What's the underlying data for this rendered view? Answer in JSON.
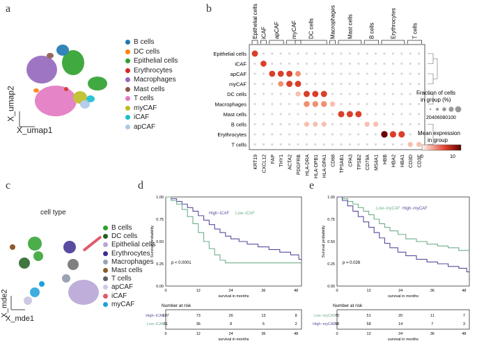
{
  "panels": {
    "a": "a",
    "b": "b",
    "c": "c",
    "d": "d",
    "e": "e"
  },
  "panel_a": {
    "xlabel": "X_umap1",
    "ylabel": "X_umap2",
    "legend": [
      {
        "label": "B cells",
        "color": "#1f77b4"
      },
      {
        "label": "DC cells",
        "color": "#ff7f0e"
      },
      {
        "label": "Epithelial cells",
        "color": "#2ca02c"
      },
      {
        "label": "Erythrocytes",
        "color": "#d62728"
      },
      {
        "label": "Macrophages",
        "color": "#9467bd"
      },
      {
        "label": "Mast cells",
        "color": "#8c564b"
      },
      {
        "label": "T cells",
        "color": "#e377c2"
      },
      {
        "label": "myCAF",
        "color": "#bcbd22"
      },
      {
        "label": "iCAF",
        "color": "#17becf"
      },
      {
        "label": "apCAF",
        "color": "#aec7e8"
      }
    ]
  },
  "panel_b": {
    "groups": [
      "Epithelial cells",
      "iCAF",
      "apCAF",
      "myCAF",
      "DC cells",
      "Macrophages",
      "Mast cells",
      "B cells",
      "Erythrocytes",
      "T cells"
    ],
    "genes": [
      "KRT19",
      "CXCL12",
      "FAP",
      "THY1",
      "ACTA2",
      "PDGFRB",
      "HLA-DRA",
      "HLA-DPB1",
      "HLA-DPA1",
      "CD68",
      "TPSAB1",
      "CPA3",
      "TPSB2",
      "CD79A",
      "MS4A1",
      "HBB",
      "HBA2",
      "HBA1",
      "CD3D",
      "CD3E"
    ],
    "gene_groups": [
      {
        "label": "Epithelial cells"
      },
      {
        "label": "iCAF"
      },
      {
        "label": "apCAF"
      },
      {
        "label": "myCAF"
      },
      {
        "label": "DC cells"
      },
      {
        "label": "Macrophages"
      },
      {
        "label": "Mast cells"
      },
      {
        "label": "B cells"
      },
      {
        "label": "Erythrocytes"
      },
      {
        "label": "T cells"
      }
    ],
    "size_legend_title_1": "Fraction of cells",
    "size_legend_title_2": "in group (%)",
    "size_ticks": "20406080100",
    "color_legend_title_1": "Mean expression",
    "color_legend_title_2": "in group",
    "color_ticks": [
      "0",
      "10"
    ]
  },
  "panel_c": {
    "title": "cell type",
    "xlabel": "X_mde1",
    "ylabel": "X_mde2",
    "legend": [
      {
        "label": "B cells",
        "color": "#2ca02c"
      },
      {
        "label": "DC cells",
        "color": "#1f5f1f"
      },
      {
        "label": "Epithelial cells",
        "color": "#b8a5d6"
      },
      {
        "label": "Erythrocytes",
        "color": "#3b2d8f"
      },
      {
        "label": "Macrophages",
        "color": "#9aa3b5"
      },
      {
        "label": "Mast cells",
        "color": "#8c5a2b"
      },
      {
        "label": "T cells",
        "color": "#606060"
      },
      {
        "label": "apCAF",
        "color": "#cfc8e3"
      },
      {
        "label": "iCAF",
        "color": "#e05a6a"
      },
      {
        "label": "myCAF",
        "color": "#1f9fd8"
      }
    ]
  },
  "panel_d": {
    "legend_high": "High−iCAF",
    "legend_low": "Low−iCAF",
    "pvalue": "p < 0.0001",
    "ylabel": "Survival probability",
    "xlabel": "survival in months",
    "yticks": [
      "0.00",
      "0.25",
      "0.50",
      "0.75",
      "1.00"
    ],
    "xticks": [
      "0",
      "12",
      "24",
      "36",
      "48"
    ],
    "risk_title": "Number at risk",
    "risk_rows": [
      {
        "label": "High−iCAF",
        "values": [
          "107",
          "73",
          "26",
          "13",
          "8"
        ]
      },
      {
        "label": "Low−iCAF",
        "values": [
          "61",
          "36",
          "8",
          "5",
          "2"
        ]
      }
    ]
  },
  "panel_e": {
    "legend_low": "Low−myCAF",
    "legend_high": "High−myCAF",
    "pvalue": "p = 0.026",
    "ylabel": "Survival probability",
    "xlabel": "survival in months",
    "yticks": [
      "0.00",
      "0.25",
      "0.50",
      "0.75",
      "1.00"
    ],
    "xticks": [
      "0",
      "12",
      "24",
      "36",
      "48"
    ],
    "risk_title": "Number at risk",
    "risk_rows": [
      {
        "label": "Low−myCAF",
        "values": [
          "70",
          "51",
          "20",
          "11",
          "7"
        ]
      },
      {
        "label": "High−myCAF",
        "values": [
          "98",
          "58",
          "14",
          "7",
          "3"
        ]
      }
    ]
  },
  "km_colors": {
    "high": "#5b4a9b",
    "low": "#6fae8a"
  }
}
